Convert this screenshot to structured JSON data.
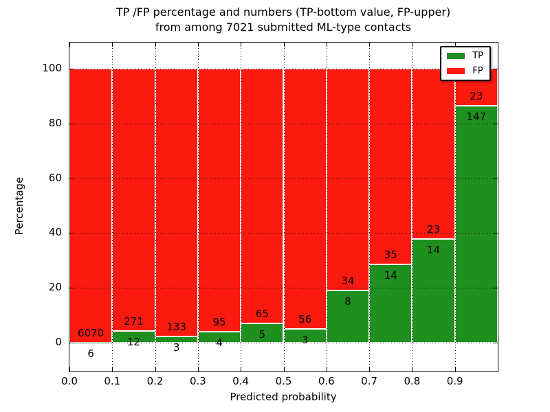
{
  "title": {
    "line1": "TP /FP percentage and numbers (TP-bottom value, FP-upper)",
    "line2": "from among 7021 submitted ML-type contacts"
  },
  "axes": {
    "xlabel": "Predicted probability",
    "ylabel": "Percentage",
    "x_tick_labels": [
      "0.0",
      "0.1",
      "0.2",
      "0.3",
      "0.4",
      "0.5",
      "0.6",
      "0.7",
      "0.8",
      "0.9"
    ],
    "y_tick_labels": [
      "0",
      "20",
      "40",
      "60",
      "80",
      "100"
    ]
  },
  "legend": {
    "items": [
      {
        "label": "TP",
        "color": "#1f8f1f"
      },
      {
        "label": "FP",
        "color": "#fb1a10"
      }
    ]
  },
  "chart_data": {
    "type": "bar",
    "stacked": true,
    "normalized_to_percent": true,
    "title": "TP /FP percentage and numbers (TP-bottom value, FP-upper)\nfrom among 7021 submitted ML-type contacts",
    "xlabel": "Predicted probability",
    "ylabel": "Percentage",
    "bin_edges": [
      0.0,
      0.1,
      0.2,
      0.3,
      0.4,
      0.5,
      0.6,
      0.7,
      0.8,
      0.9,
      1.0
    ],
    "categories": [
      "0.0-0.1",
      "0.1-0.2",
      "0.2-0.3",
      "0.3-0.4",
      "0.4-0.5",
      "0.5-0.6",
      "0.6-0.7",
      "0.7-0.8",
      "0.8-0.9",
      "0.9-1.0"
    ],
    "series": [
      {
        "name": "TP",
        "color": "#1f8f1f",
        "counts": [
          6,
          12,
          3,
          4,
          5,
          3,
          8,
          14,
          14,
          147
        ]
      },
      {
        "name": "FP",
        "color": "#fb1a10",
        "counts": [
          6070,
          271,
          133,
          95,
          65,
          56,
          34,
          35,
          23,
          23
        ]
      }
    ],
    "tp_percent": [
      0.1,
      4.2,
      2.2,
      4.0,
      7.1,
      5.1,
      19.0,
      28.6,
      37.8,
      86.5
    ],
    "total_submitted": 7021,
    "x_ticks": [
      0.0,
      0.1,
      0.2,
      0.3,
      0.4,
      0.5,
      0.6,
      0.7,
      0.8,
      0.9
    ],
    "y_ticks": [
      0,
      20,
      40,
      60,
      80,
      100
    ],
    "ylim": [
      -11,
      110
    ],
    "xlim": [
      0,
      1
    ],
    "grid": "dotted",
    "legend_position": "upper right"
  }
}
